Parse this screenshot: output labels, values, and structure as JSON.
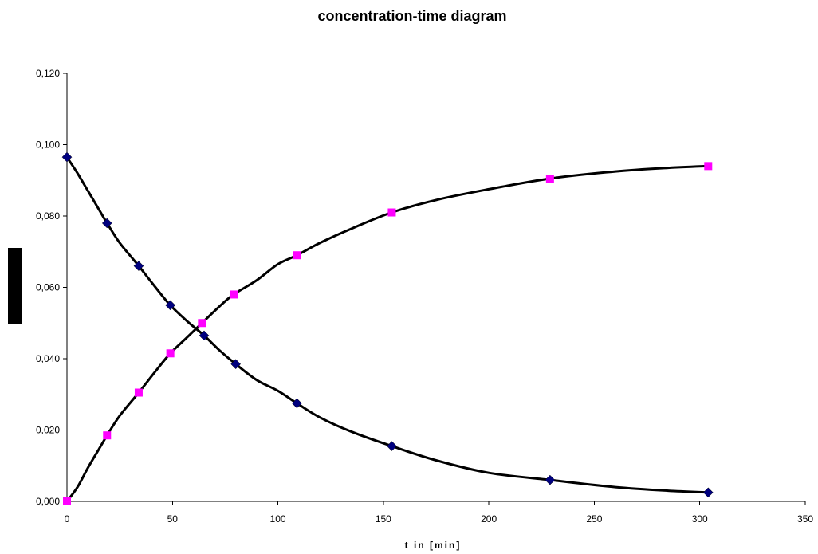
{
  "chart_data": {
    "type": "scatter",
    "title": "concentration-time diagram",
    "xlabel": "t in [min]",
    "ylabel": "",
    "xlim": [
      0,
      350
    ],
    "ylim": [
      0,
      0.12
    ],
    "x_ticks": [
      "0",
      "50",
      "100",
      "150",
      "200",
      "250",
      "300",
      "350"
    ],
    "y_ticks": [
      "0,000",
      "0,020",
      "0,040",
      "0,060",
      "0,080",
      "0,100",
      "0,120"
    ],
    "grid": false,
    "legend": "none",
    "series": [
      {
        "marker": "diamond",
        "color": "#00007f",
        "x": [
          0,
          19,
          34,
          49,
          65,
          80,
          109,
          154,
          229,
          304
        ],
        "y": [
          0.0965,
          0.078,
          0.066,
          0.055,
          0.0465,
          0.0385,
          0.0275,
          0.0155,
          0.006,
          0.0025
        ]
      },
      {
        "marker": "square",
        "color": "#ff00ff",
        "x": [
          0,
          19,
          34,
          49,
          64,
          79,
          109,
          154,
          229,
          304
        ],
        "y": [
          0.0,
          0.0185,
          0.0305,
          0.0415,
          0.05,
          0.058,
          0.069,
          0.081,
          0.0905,
          0.094
        ]
      }
    ],
    "fit_lines": [
      {
        "x": [
          0,
          5,
          10,
          15,
          19,
          25,
          34,
          42,
          49,
          57,
          65,
          72,
          80,
          90,
          100,
          109,
          120,
          135,
          154,
          175,
          200,
          229,
          260,
          285,
          304
        ],
        "y": [
          0.0965,
          0.092,
          0.087,
          0.082,
          0.078,
          0.0725,
          0.066,
          0.06,
          0.055,
          0.0505,
          0.0465,
          0.0425,
          0.0385,
          0.034,
          0.031,
          0.0275,
          0.0235,
          0.0195,
          0.0155,
          0.0115,
          0.008,
          0.006,
          0.004,
          0.003,
          0.0025
        ]
      },
      {
        "x": [
          0,
          5,
          10,
          15,
          19,
          25,
          34,
          42,
          49,
          57,
          64,
          72,
          79,
          90,
          100,
          109,
          120,
          135,
          154,
          175,
          200,
          229,
          260,
          285,
          304
        ],
        "y": [
          0.0,
          0.004,
          0.0095,
          0.0145,
          0.0185,
          0.024,
          0.0305,
          0.0365,
          0.0415,
          0.046,
          0.05,
          0.0545,
          0.058,
          0.062,
          0.0665,
          0.069,
          0.0725,
          0.0765,
          0.081,
          0.0845,
          0.0875,
          0.0905,
          0.0925,
          0.0935,
          0.094
        ]
      }
    ]
  }
}
